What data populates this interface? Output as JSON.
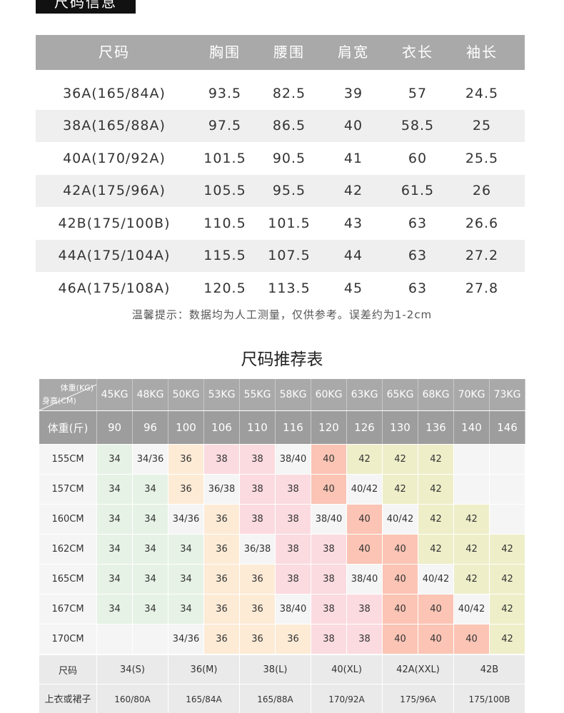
{
  "section_title": "尺码信息",
  "size_table": {
    "headers": [
      "尺码",
      "胸围",
      "腰围",
      "肩宽",
      "衣长",
      "袖长"
    ],
    "rows": [
      [
        "36A(165/84A)",
        "93.5",
        "82.5",
        "39",
        "57",
        "24.5"
      ],
      [
        "38A(165/88A)",
        "97.5",
        "86.5",
        "40",
        "58.5",
        "25"
      ],
      [
        "40A(170/92A)",
        "101.5",
        "90.5",
        "41",
        "60",
        "25.5"
      ],
      [
        "42A(175/96A)",
        "105.5",
        "95.5",
        "42",
        "61.5",
        "26"
      ],
      [
        "42B(175/100B)",
        "110.5",
        "101.5",
        "43",
        "63",
        "26.6"
      ],
      [
        "44A(175/104A)",
        "115.5",
        "107.5",
        "44",
        "63",
        "27.2"
      ],
      [
        "46A(175/108A)",
        "120.5",
        "113.5",
        "45",
        "63",
        "27.8"
      ]
    ],
    "note": "温馨提示：数据均为人工测量，仅供参考。误差约为1-2cm"
  },
  "recommend": {
    "title": "尺码推荐表",
    "corner_top": "体重(KG)",
    "corner_bottom": "身高(CM)",
    "weights_kg": [
      "45KG",
      "48KG",
      "50KG",
      "53KG",
      "55KG",
      "58KG",
      "60KG",
      "63KG",
      "65KG",
      "68KG",
      "70KG",
      "73KG"
    ],
    "weight_jin_label": "体重(斤)",
    "weights_jin": [
      "90",
      "96",
      "100",
      "106",
      "110",
      "116",
      "120",
      "126",
      "130",
      "136",
      "140",
      "146"
    ],
    "rows": [
      {
        "height": "155CM",
        "cells": [
          "34",
          "34/36",
          "36",
          "38",
          "38",
          "38/40",
          "40",
          "42",
          "42",
          "42",
          "",
          ""
        ]
      },
      {
        "height": "157CM",
        "cells": [
          "34",
          "34",
          "36",
          "36/38",
          "38",
          "38",
          "40",
          "40/42",
          "42",
          "42",
          "",
          ""
        ]
      },
      {
        "height": "160CM",
        "cells": [
          "34",
          "34",
          "34/36",
          "36",
          "38",
          "38",
          "38/40",
          "40",
          "40/42",
          "42",
          "42",
          ""
        ]
      },
      {
        "height": "162CM",
        "cells": [
          "34",
          "34",
          "34",
          "36",
          "36/38",
          "38",
          "38",
          "40",
          "40",
          "42",
          "42",
          "42"
        ]
      },
      {
        "height": "165CM",
        "cells": [
          "34",
          "34",
          "34",
          "36",
          "36",
          "38",
          "38",
          "38/40",
          "40",
          "40/42",
          "42",
          "42"
        ]
      },
      {
        "height": "167CM",
        "cells": [
          "34",
          "34",
          "34",
          "36",
          "36",
          "38/40",
          "38",
          "38",
          "40",
          "40",
          "40/42",
          "42"
        ]
      },
      {
        "height": "170CM",
        "cells": [
          "",
          "",
          "34/36",
          "36",
          "36",
          "36",
          "38",
          "38",
          "40",
          "40",
          "40",
          "42"
        ]
      }
    ],
    "size_label": "尺码",
    "sizes": [
      "34(S)",
      "36(M)",
      "38(L)",
      "40(XL)",
      "42A(XXL)",
      "42B"
    ],
    "top_label": "上衣或裙子",
    "tops": [
      "160/80A",
      "165/84A",
      "165/88A",
      "170/92A",
      "175/96A",
      "175/100B"
    ],
    "colors": {
      "34": "#e6f2e6",
      "36": "#fdebd6",
      "38": "#fbdbe0",
      "40": "#fbc4b4",
      "42": "#eeeec9",
      "mixed": "#f5f5f5",
      "empty": "#f5f5f5"
    }
  }
}
